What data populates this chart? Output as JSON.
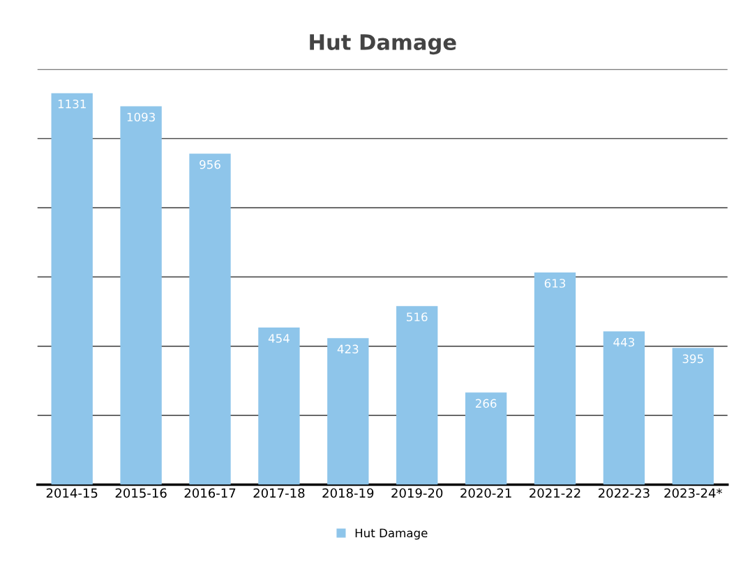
{
  "chart_data": {
    "type": "bar",
    "title": "Hut Damage",
    "categories": [
      "2014-15",
      "2015-16",
      "2016-17",
      "2017-18",
      "2018-19",
      "2019-20",
      "2020-21",
      "2021-22",
      "2022-23",
      "2023-24*"
    ],
    "series": [
      {
        "name": "Hut Damage",
        "color": "#8ec5ea",
        "values": [
          1131,
          1093,
          956,
          454,
          423,
          516,
          266,
          613,
          443,
          395
        ]
      }
    ],
    "data_labels": true,
    "ylim": [
      0,
      1200
    ],
    "yticks": [
      {
        "value": 0,
        "label": null
      },
      {
        "value": 200,
        "label": null
      },
      {
        "value": 400,
        "label": null
      },
      {
        "value": 600,
        "label": null
      },
      {
        "value": 800,
        "label": null
      },
      {
        "value": 1000,
        "label": null
      },
      {
        "value": 1200,
        "label": null
      }
    ],
    "tick_labels": "x",
    "grid": "y",
    "legend": "bottom"
  }
}
